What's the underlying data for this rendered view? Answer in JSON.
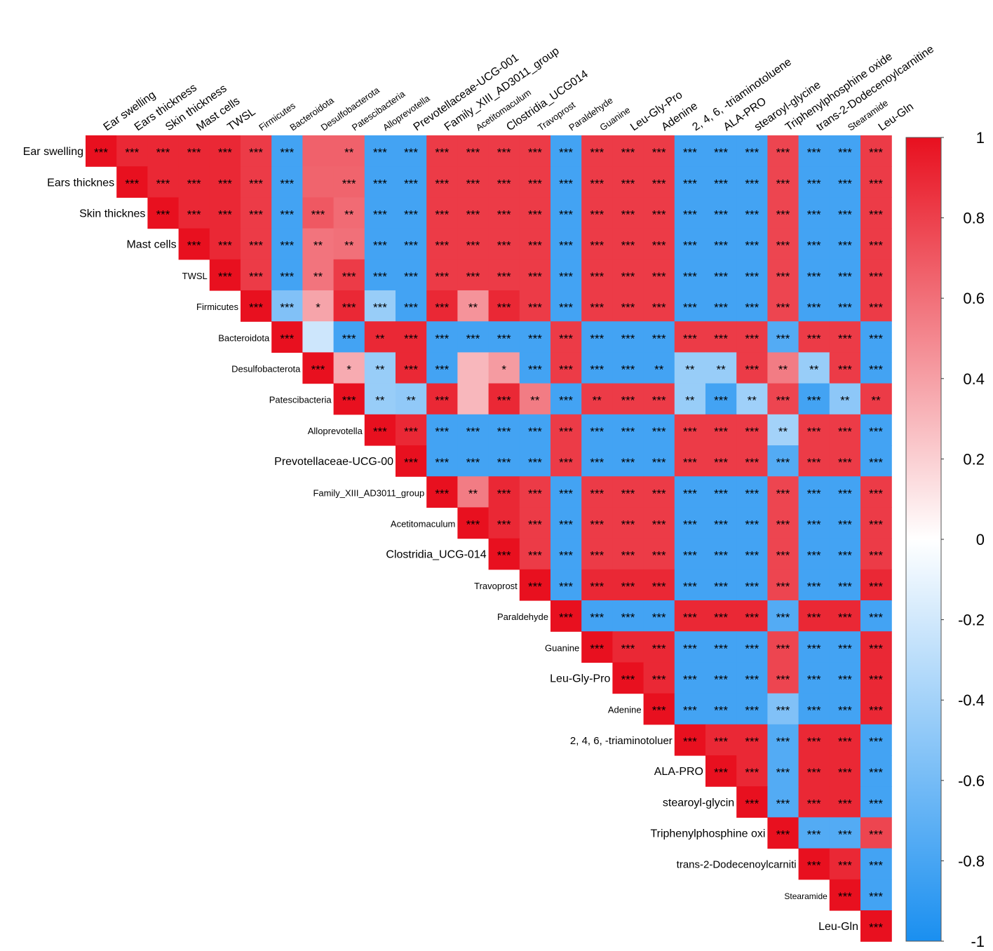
{
  "chart_data": {
    "type": "heatmap",
    "subtype": "upper-triangle correlation matrix",
    "variables": [
      "Ear swelling",
      "Ears thickness",
      "Skin thickness",
      "Mast cells",
      "TWSL",
      "Firmicutes",
      "Bacteroidota",
      "Desulfobacterota",
      "Patescibacteria",
      "Alloprevotella",
      "Prevotellaceae-UCG-001",
      "Family_XIII_AD3011_group",
      "Acetitomaculum",
      "Clostridia_UCG-014",
      "Travoprost",
      "Paraldehyde",
      "Guanine",
      "Leu-Gly-Pro",
      "Adenine",
      "2, 4, 6, -triaminotoluene",
      "ALA-PRO",
      "stearoyl-glycine",
      "Triphenylphosphine oxide",
      "trans-2-Dodecenoylcarnitine",
      "Stearamide",
      "Leu-Gln"
    ],
    "column_labels": [
      "Ear swelling",
      "Ears thickness",
      "Skin thickness",
      "Mast cells",
      "TWSL",
      "Firmicutes",
      "Bacteroidota",
      "Desulfobacterota",
      "Patescibacteria",
      "Alloprevotella",
      "Prevotellaceae-UCG-001",
      "Family_XIII_AD3011_group",
      "Acetitomaculum",
      "Clostridia_UCG014",
      "Travoprost",
      "Paraldehyde",
      "Guanine",
      "Leu-Gly-Pro",
      "Adenine",
      "2, 4, 6, -triaminotoluene",
      "ALA-PRO",
      "stearoyl-glycine",
      "Triphenylphosphine oxide",
      "trans-2-Dodecenoylcarnitine",
      "Stearamide",
      "Leu-Gln"
    ],
    "row_labels": [
      "Ear swelling",
      "Ears thicknes",
      "Skin thicknes",
      "Mast cells",
      "TWSL",
      "Firmicutes",
      "Bacteroidota",
      "Desulfobacterota",
      "Patescibacteria",
      "Alloprevotella",
      "Prevotellaceae-UCG-00",
      "Family_XIII_AD3011_group",
      "Acetitomaculum",
      "Clostridia_UCG-014",
      "Travoprost",
      "Paraldehyde",
      "Guanine",
      "Leu-Gly-Pro",
      "Adenine",
      "2, 4, 6, -triaminotoluer",
      "ALA-PRO",
      "stearoyl-glycin",
      "Triphenylphosphine oxi",
      "trans-2-Dodecenoylcarniti",
      "Stearamide",
      "Leu-Gln"
    ],
    "groups": {
      "phenotype": [
        0,
        1,
        2,
        3,
        4
      ],
      "microbiota_A": [
        5,
        8,
        11,
        12,
        13
      ],
      "microbiota_B": [
        6,
        7,
        9,
        10
      ],
      "metabolite_A": [
        14,
        16,
        17,
        18,
        25
      ],
      "metabolite_B": [
        15,
        19,
        20,
        21,
        23,
        24
      ],
      "other": [
        22
      ]
    },
    "value_range": [
      -1,
      1
    ],
    "colorbar_ticks": [
      "1",
      "0.8",
      "0.6",
      "0.4",
      "0.2",
      "0",
      "-0.2",
      "-0.4",
      "-0.6",
      "-0.8",
      "-1"
    ],
    "colorbar_tick_values": [
      1,
      0.8,
      0.6,
      0.4,
      0.2,
      0,
      -0.2,
      -0.4,
      -0.6,
      -0.8,
      -1
    ],
    "colors": {
      "positive": "#e8101f",
      "neutral": "#ffffff",
      "negative": "#1a8ff0",
      "text": "#000000"
    },
    "value_overrides": [
      {
        "row": 1,
        "col": 7,
        "value": 0.65
      },
      {
        "row": 1,
        "col": 8,
        "value": 0.65
      },
      {
        "row": 0,
        "col": 7,
        "value": 0.66
      },
      {
        "row": 0,
        "col": 8,
        "value": 0.66
      },
      {
        "row": 2,
        "col": 7,
        "value": 0.7
      },
      {
        "row": 2,
        "col": 8,
        "value": 0.62
      },
      {
        "row": 3,
        "col": 7,
        "value": 0.58
      },
      {
        "row": 3,
        "col": 8,
        "value": 0.6
      },
      {
        "row": 4,
        "col": 7,
        "value": 0.58
      },
      {
        "row": 5,
        "col": 6,
        "value": -0.55
      },
      {
        "row": 5,
        "col": 7,
        "value": 0.38
      },
      {
        "row": 5,
        "col": 9,
        "value": -0.45
      },
      {
        "row": 5,
        "col": 12,
        "value": 0.45
      },
      {
        "row": 6,
        "col": 7,
        "value": -0.22
      },
      {
        "row": 7,
        "col": 8,
        "value": 0.35
      },
      {
        "row": 7,
        "col": 9,
        "value": -0.45
      },
      {
        "row": 7,
        "col": 12,
        "value": 0.3
      },
      {
        "row": 7,
        "col": 13,
        "value": 0.42
      },
      {
        "row": 7,
        "col": 19,
        "value": -0.45
      },
      {
        "row": 7,
        "col": 20,
        "value": -0.45
      },
      {
        "row": 7,
        "col": 22,
        "value": 0.55
      },
      {
        "row": 7,
        "col": 23,
        "value": -0.45
      },
      {
        "row": 8,
        "col": 9,
        "value": -0.45
      },
      {
        "row": 8,
        "col": 10,
        "value": -0.48
      },
      {
        "row": 8,
        "col": 12,
        "value": 0.3
      },
      {
        "row": 8,
        "col": 14,
        "value": 0.55
      },
      {
        "row": 8,
        "col": 19,
        "value": -0.45
      },
      {
        "row": 8,
        "col": 21,
        "value": -0.42
      },
      {
        "row": 8,
        "col": 24,
        "value": -0.5
      },
      {
        "row": 9,
        "col": 22,
        "value": -0.4
      },
      {
        "row": 11,
        "col": 12,
        "value": 0.55
      },
      {
        "row": 18,
        "col": 22,
        "value": -0.55
      }
    ],
    "significance_overrides": [
      {
        "row": 0,
        "col": 7,
        "stars": ""
      },
      {
        "row": 0,
        "col": 8,
        "stars": "**"
      },
      {
        "row": 1,
        "col": 7,
        "stars": ""
      },
      {
        "row": 2,
        "col": 8,
        "stars": "**"
      },
      {
        "row": 3,
        "col": 7,
        "stars": "**"
      },
      {
        "row": 3,
        "col": 8,
        "stars": "**"
      },
      {
        "row": 4,
        "col": 7,
        "stars": "**"
      },
      {
        "row": 5,
        "col": 7,
        "stars": "*"
      },
      {
        "row": 5,
        "col": 12,
        "stars": "**"
      },
      {
        "row": 6,
        "col": 7,
        "stars": ""
      },
      {
        "row": 6,
        "col": 9,
        "stars": "**"
      },
      {
        "row": 7,
        "col": 8,
        "stars": "*"
      },
      {
        "row": 7,
        "col": 9,
        "stars": "**"
      },
      {
        "row": 7,
        "col": 12,
        "stars": ""
      },
      {
        "row": 7,
        "col": 13,
        "stars": "*"
      },
      {
        "row": 7,
        "col": 18,
        "stars": "**"
      },
      {
        "row": 7,
        "col": 19,
        "stars": "**"
      },
      {
        "row": 7,
        "col": 20,
        "stars": "**"
      },
      {
        "row": 7,
        "col": 22,
        "stars": "**"
      },
      {
        "row": 7,
        "col": 23,
        "stars": "**"
      },
      {
        "row": 8,
        "col": 9,
        "stars": "**"
      },
      {
        "row": 8,
        "col": 10,
        "stars": "**"
      },
      {
        "row": 8,
        "col": 12,
        "stars": ""
      },
      {
        "row": 8,
        "col": 14,
        "stars": "**"
      },
      {
        "row": 8,
        "col": 16,
        "stars": "**"
      },
      {
        "row": 8,
        "col": 19,
        "stars": "**"
      },
      {
        "row": 8,
        "col": 21,
        "stars": "**"
      },
      {
        "row": 8,
        "col": 24,
        "stars": "**"
      },
      {
        "row": 8,
        "col": 25,
        "stars": "**"
      },
      {
        "row": 9,
        "col": 22,
        "stars": "**"
      },
      {
        "row": 11,
        "col": 12,
        "stars": "**"
      }
    ],
    "default_significance": "***",
    "title": "",
    "xlabel": "",
    "ylabel": "",
    "legend": "colorbar right"
  }
}
